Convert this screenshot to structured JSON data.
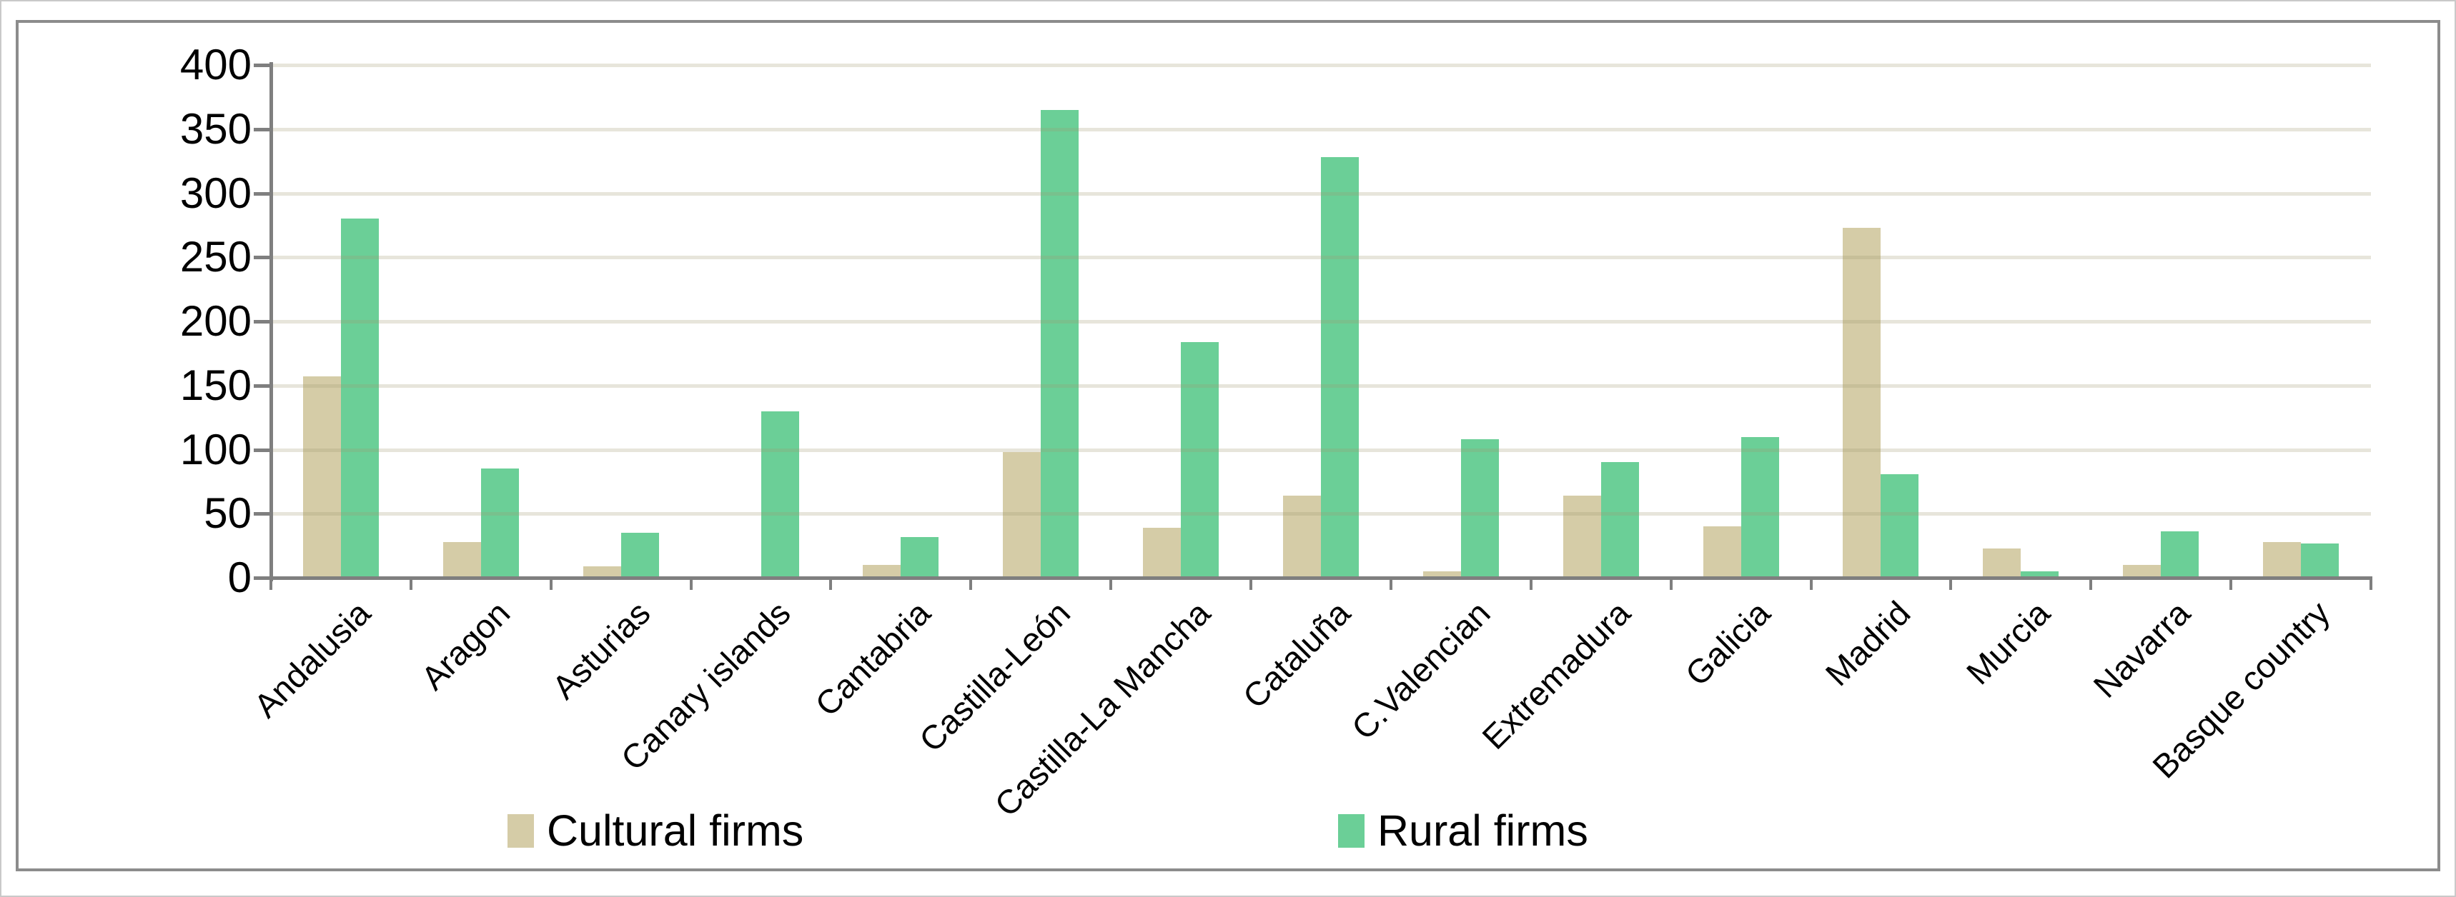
{
  "chart_data": {
    "type": "bar",
    "title": "",
    "categories": [
      "Andalusia",
      "Aragon",
      "Asturias",
      "Canary islands",
      "Cantabria",
      "Castilla-León",
      "Castilla-La Mancha",
      "Cataluña",
      "C.Valencian",
      "Extremadura",
      "Galicia",
      "Madrid",
      "Murcia",
      "Navarra",
      "Basque country"
    ],
    "series": [
      {
        "name": "Cultural firms",
        "color": "#d5cca7",
        "values": [
          157,
          28,
          9,
          0,
          10,
          98,
          39,
          64,
          5,
          64,
          40,
          273,
          23,
          10,
          28
        ]
      },
      {
        "name": "Rural firms",
        "color": "#6bcf97",
        "values": [
          280,
          85,
          35,
          130,
          32,
          365,
          184,
          328,
          108,
          90,
          110,
          81,
          5,
          36,
          27
        ]
      }
    ],
    "xlabel": "",
    "ylabel": "",
    "ylim": [
      0,
      400
    ],
    "ytick_step": 50,
    "yticks": [
      0,
      50,
      100,
      150,
      200,
      250,
      300,
      350,
      400
    ],
    "grid": true,
    "legend_position": "bottom"
  },
  "style": {
    "gridline_color": "#eeeadb",
    "axis_color": "#7f7f7f",
    "frame_color": "#8c8c8c",
    "background": "#ffffff"
  }
}
